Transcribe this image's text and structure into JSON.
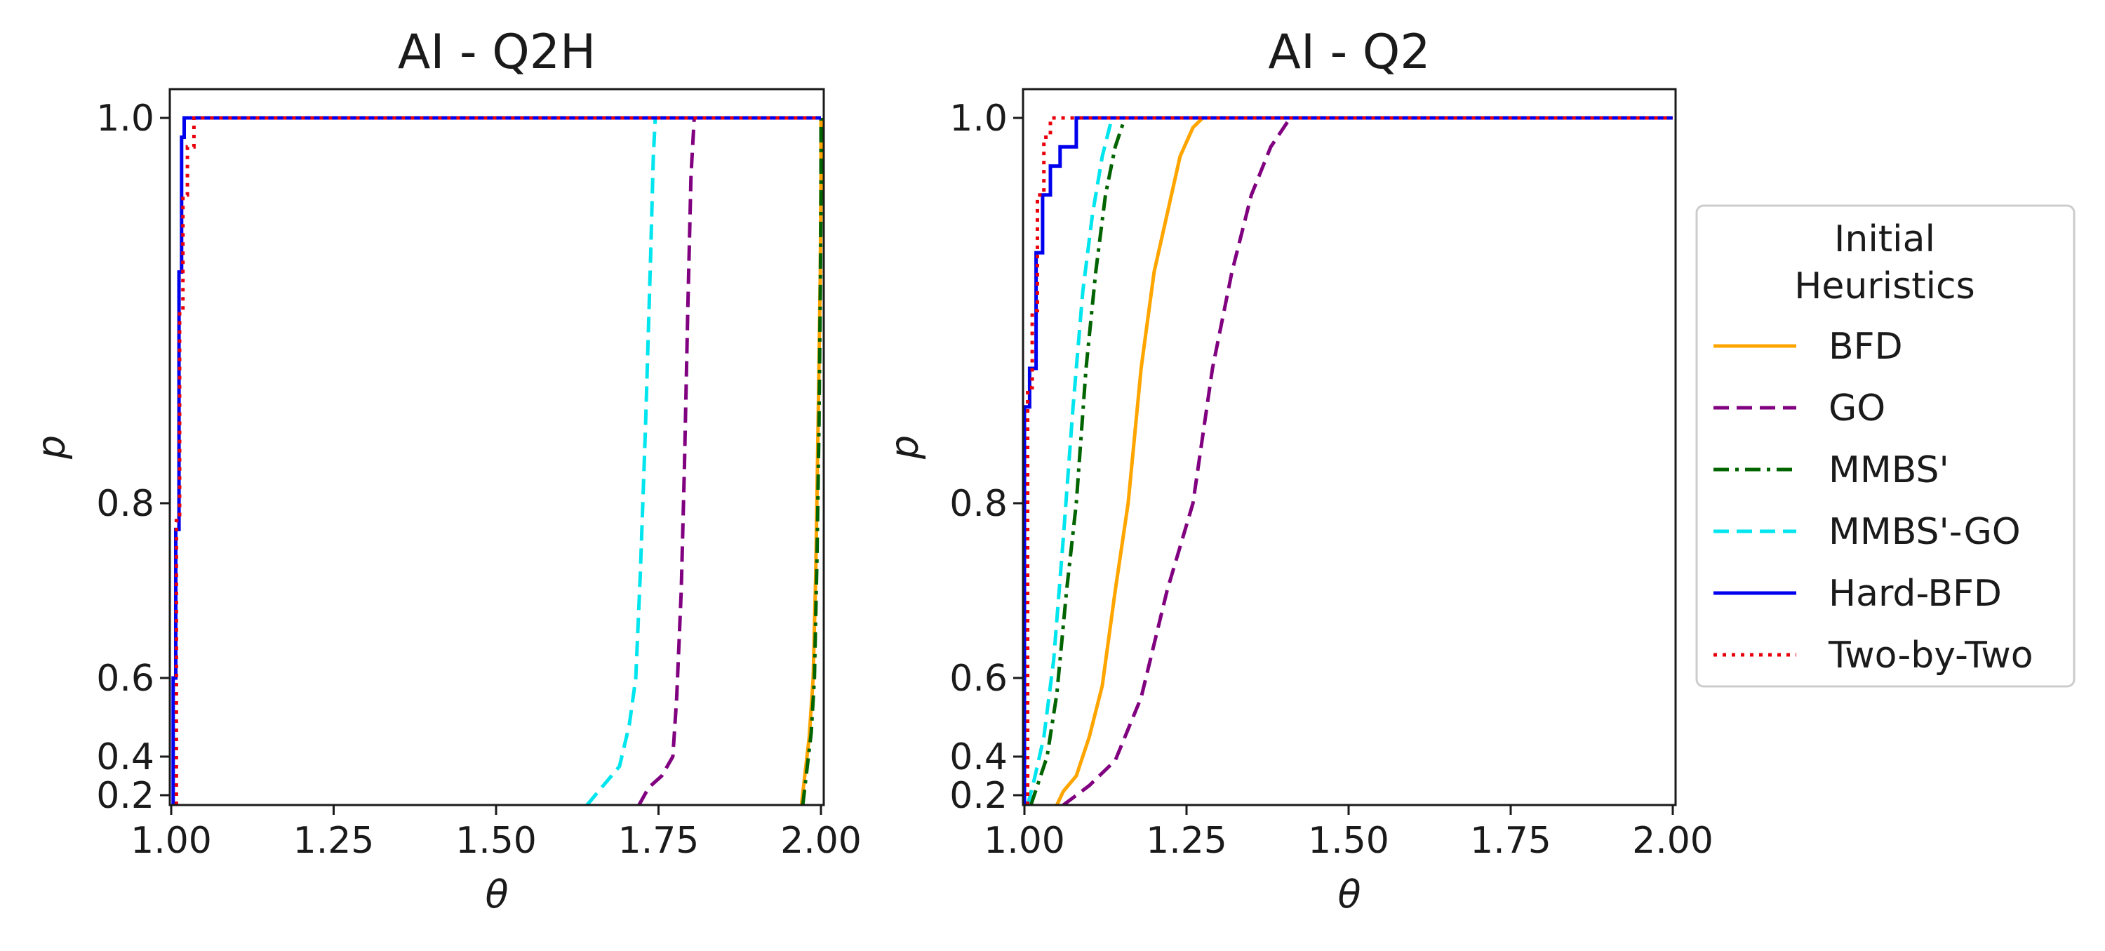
{
  "chart_data": [
    {
      "type": "line",
      "title": "AI - Q2H",
      "xlabel": "θ",
      "ylabel": "p",
      "xlim": [
        1.0,
        2.0
      ],
      "ylim": [
        0.18,
        1.02
      ],
      "xticks": [
        "1.00",
        "1.25",
        "1.50",
        "1.75",
        "2.00"
      ],
      "yticks": [
        "0.2",
        "0.4",
        "0.6",
        "0.8",
        "1.0"
      ],
      "series": [
        {
          "name": "BFD",
          "color": "#ffa500",
          "dash": "solid",
          "x": [
            1.97,
            1.975,
            1.982,
            1.988,
            1.992,
            1.996,
            1.999,
            2.0,
            2.0
          ],
          "y": [
            0.18,
            0.3,
            0.45,
            0.6,
            0.72,
            0.85,
            0.92,
            0.97,
            1.0
          ]
        },
        {
          "name": "GO",
          "color": "#800080",
          "dash": "dashed",
          "x": [
            1.72,
            1.735,
            1.755,
            1.772,
            1.778,
            1.785,
            1.79,
            1.795,
            1.8,
            1.805
          ],
          "y": [
            0.18,
            0.24,
            0.3,
            0.4,
            0.55,
            0.7,
            0.82,
            0.9,
            0.97,
            1.0
          ]
        },
        {
          "name": "MMBS'",
          "color": "#006400",
          "dash": "dashdot",
          "x": [
            1.972,
            1.978,
            1.985,
            1.99,
            1.994,
            1.997,
            1.999,
            2.0,
            2.0
          ],
          "y": [
            0.18,
            0.32,
            0.46,
            0.6,
            0.74,
            0.84,
            0.91,
            0.96,
            1.0
          ]
        },
        {
          "name": "MMBS'-GO",
          "color": "#00e5ee",
          "dash": "dashed",
          "x": [
            1.64,
            1.665,
            1.69,
            1.705,
            1.715,
            1.722,
            1.73,
            1.738,
            1.742,
            1.745
          ],
          "y": [
            0.18,
            0.25,
            0.35,
            0.48,
            0.6,
            0.72,
            0.84,
            0.93,
            0.98,
            1.0
          ]
        },
        {
          "name": "Hard-BFD",
          "color": "#0000ee",
          "dash": "solid",
          "x": [
            1.003,
            1.003,
            1.007,
            1.007,
            1.012,
            1.012,
            1.016,
            1.016,
            1.02,
            1.02,
            1.03,
            2.0
          ],
          "y": [
            0.18,
            0.6,
            0.6,
            0.77,
            0.77,
            0.92,
            0.92,
            0.99,
            0.99,
            1.0,
            1.0,
            1.0
          ]
        },
        {
          "name": "Two-by-Two",
          "color": "#e8000b",
          "dash": "dotted",
          "x": [
            1.008,
            1.008,
            1.013,
            1.013,
            1.018,
            1.018,
            1.025,
            1.025,
            1.035,
            1.035,
            2.0
          ],
          "y": [
            0.18,
            0.78,
            0.78,
            0.9,
            0.9,
            0.96,
            0.96,
            0.985,
            0.985,
            1.0,
            1.0
          ]
        }
      ]
    },
    {
      "type": "line",
      "title": "AI - Q2",
      "xlabel": "θ",
      "ylabel": "p",
      "xlim": [
        1.0,
        2.0
      ],
      "ylim": [
        0.18,
        1.02
      ],
      "xticks": [
        "1.00",
        "1.25",
        "1.50",
        "1.75",
        "2.00"
      ],
      "yticks": [
        "0.2",
        "0.4",
        "0.6",
        "0.8",
        "1.0"
      ],
      "series": [
        {
          "name": "BFD",
          "color": "#ffa500",
          "dash": "solid",
          "x": [
            1.05,
            1.06,
            1.08,
            1.1,
            1.12,
            1.14,
            1.16,
            1.18,
            1.2,
            1.22,
            1.24,
            1.26,
            1.275
          ],
          "y": [
            0.18,
            0.22,
            0.3,
            0.45,
            0.58,
            0.7,
            0.8,
            0.87,
            0.92,
            0.95,
            0.98,
            0.995,
            1.0
          ]
        },
        {
          "name": "GO",
          "color": "#800080",
          "dash": "dashed",
          "x": [
            1.06,
            1.1,
            1.14,
            1.18,
            1.22,
            1.26,
            1.29,
            1.32,
            1.35,
            1.38,
            1.41
          ],
          "y": [
            0.18,
            0.25,
            0.38,
            0.55,
            0.7,
            0.8,
            0.87,
            0.92,
            0.96,
            0.985,
            1.0
          ]
        },
        {
          "name": "MMBS'",
          "color": "#006400",
          "dash": "dashdot",
          "x": [
            1.01,
            1.02,
            1.035,
            1.05,
            1.065,
            1.08,
            1.095,
            1.11,
            1.125,
            1.14,
            1.155
          ],
          "y": [
            0.18,
            0.25,
            0.4,
            0.56,
            0.7,
            0.8,
            0.87,
            0.92,
            0.96,
            0.985,
            1.0
          ]
        },
        {
          "name": "MMBS'-GO",
          "color": "#00e5ee",
          "dash": "dashed",
          "x": [
            1.005,
            1.015,
            1.03,
            1.045,
            1.06,
            1.075,
            1.09,
            1.105,
            1.12,
            1.135
          ],
          "y": [
            0.18,
            0.28,
            0.45,
            0.62,
            0.76,
            0.85,
            0.91,
            0.95,
            0.98,
            1.0
          ]
        },
        {
          "name": "Hard-BFD",
          "color": "#0000ee",
          "dash": "solid",
          "x": [
            1.0,
            1.0,
            1.008,
            1.008,
            1.018,
            1.018,
            1.028,
            1.028,
            1.04,
            1.04,
            1.055,
            1.055,
            1.08,
            1.08,
            2.0
          ],
          "y": [
            0.18,
            0.85,
            0.85,
            0.87,
            0.87,
            0.93,
            0.93,
            0.96,
            0.96,
            0.975,
            0.975,
            0.985,
            0.985,
            1.0,
            1.0
          ]
        },
        {
          "name": "Two-by-Two",
          "color": "#e8000b",
          "dash": "dotted",
          "x": [
            1.005,
            1.005,
            1.012,
            1.012,
            1.02,
            1.02,
            1.03,
            1.03,
            1.04,
            1.04,
            2.0
          ],
          "y": [
            0.18,
            0.86,
            0.86,
            0.9,
            0.9,
            0.96,
            0.96,
            0.99,
            0.99,
            1.0,
            1.0
          ]
        }
      ]
    }
  ],
  "legend": {
    "title_line1": "Initial",
    "title_line2": "Heuristics",
    "entries": [
      "BFD",
      "GO",
      "MMBS'",
      "MMBS'-GO",
      "Hard-BFD",
      "Two-by-Two"
    ]
  }
}
